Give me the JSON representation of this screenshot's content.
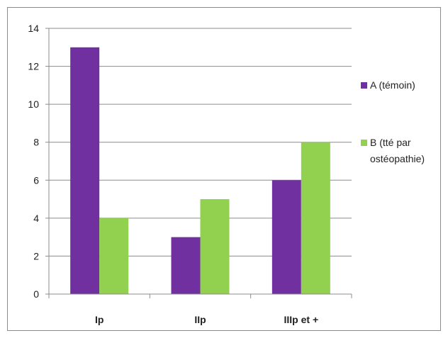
{
  "chart_data": {
    "type": "bar",
    "title": "",
    "xlabel": "",
    "ylabel": "",
    "categories": [
      "Ip",
      "IIp",
      "IIIp et +"
    ],
    "series": [
      {
        "name": "A (témoin)",
        "values": [
          13,
          3,
          6
        ],
        "color": "#7030a0"
      },
      {
        "name": "B (tté par ostéopathie)",
        "name_lines": [
          "B (tté par",
          "ostéopathie)"
        ],
        "values": [
          4,
          5,
          8
        ],
        "color": "#92d050"
      }
    ],
    "ylim": [
      0,
      14
    ],
    "yticks": [
      0,
      2,
      4,
      6,
      8,
      10,
      12,
      14
    ],
    "grid": true,
    "legend": "right"
  }
}
